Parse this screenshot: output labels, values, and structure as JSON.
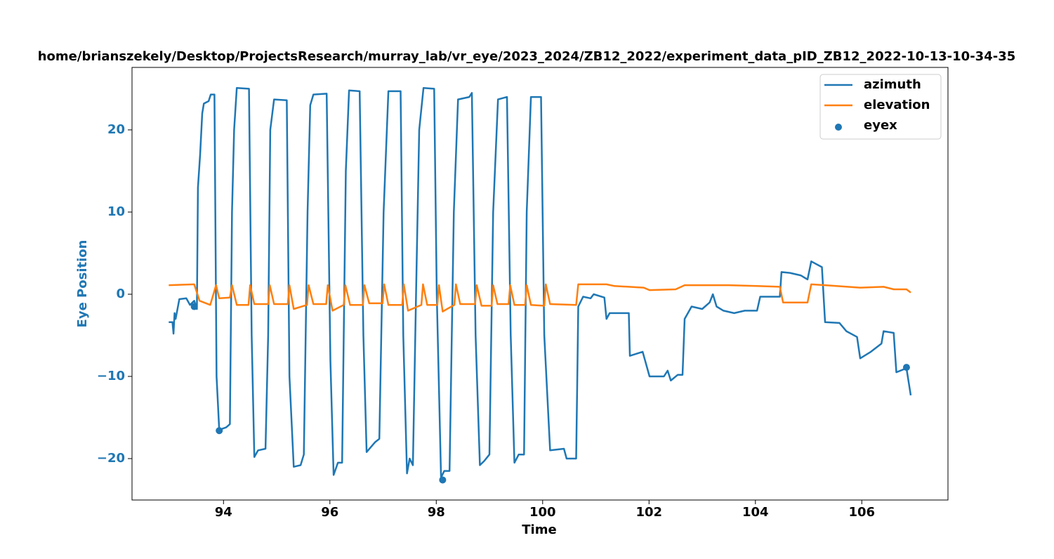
{
  "chart_data": {
    "type": "line",
    "title": "home/brianszekely/Desktop/ProjectsResearch/murray_lab/vr_eye/2023_2024/ZB12_2022/experiment_data_pID_ZB12_2022-10-13-10-34-35",
    "xlabel": "Time",
    "ylabel": "Eye Position",
    "ylabel_color": "#1f77b4",
    "xlim": [
      92.28,
      107.62
    ],
    "ylim": [
      -25.04,
      27.6
    ],
    "xticks": [
      94,
      96,
      98,
      100,
      102,
      104,
      106
    ],
    "yticks": [
      {
        "value": -20,
        "label": "−20"
      },
      {
        "value": -10,
        "label": "−10"
      },
      0,
      10,
      20
    ],
    "legend": "upper right",
    "series": [
      {
        "name": "azimuth",
        "type": "line",
        "color": "#1f77b4",
        "x": [
          92.97,
          93.04,
          93.06,
          93.08,
          93.1,
          93.17,
          93.3,
          93.37,
          93.45,
          93.5,
          93.52,
          93.56,
          93.6,
          93.63,
          93.72,
          93.76,
          93.83,
          93.87,
          93.92,
          94.05,
          94.12,
          94.16,
          94.2,
          94.25,
          94.48,
          94.53,
          94.58,
          94.65,
          94.79,
          94.84,
          94.88,
          94.95,
          95.19,
          95.24,
          95.32,
          95.45,
          95.51,
          95.58,
          95.63,
          95.69,
          95.94,
          96.01,
          96.07,
          96.15,
          96.23,
          96.3,
          96.36,
          96.56,
          96.63,
          96.69,
          96.85,
          96.93,
          97.01,
          97.1,
          97.33,
          97.38,
          97.45,
          97.5,
          97.56,
          97.62,
          97.68,
          97.76,
          97.96,
          98.01,
          98.09,
          98.15,
          98.25,
          98.33,
          98.41,
          98.62,
          98.67,
          98.74,
          98.82,
          98.9,
          99.0,
          99.07,
          99.16,
          99.33,
          99.4,
          99.47,
          99.55,
          99.65,
          99.7,
          99.78,
          99.97,
          100.03,
          100.14,
          100.4,
          100.45,
          100.63,
          100.65,
          100.67,
          100.76,
          100.9,
          100.96,
          101.16,
          101.2,
          101.26,
          101.62,
          101.64,
          101.88,
          102.01,
          102.28,
          102.35,
          102.41,
          102.54,
          102.63,
          102.67,
          102.8,
          103.0,
          103.14,
          103.2,
          103.27,
          103.4,
          103.6,
          103.8,
          104.03,
          104.09,
          104.46,
          104.49,
          104.65,
          104.85,
          104.98,
          105.05,
          105.25,
          105.31,
          105.58,
          105.71,
          105.91,
          105.97,
          106.17,
          106.37,
          106.41,
          106.6,
          106.65,
          106.84,
          106.92
        ],
        "values": [
          -3.4,
          -3.4,
          -4.8,
          -2.3,
          -3,
          -0.6,
          -0.5,
          -1.3,
          -0.8,
          -1.8,
          13,
          17,
          22,
          23.2,
          23.5,
          24.3,
          24.3,
          -10,
          -16.5,
          -16.2,
          -15.8,
          10,
          20,
          25.1,
          25,
          -5,
          -19.8,
          -19,
          -18.8,
          -5,
          20,
          23.7,
          23.6,
          -10,
          -21,
          -20.8,
          -19.5,
          10,
          23,
          24.3,
          24.4,
          -8,
          -22,
          -20.5,
          -20.5,
          15,
          24.8,
          24.7,
          -5,
          -19.2,
          -18,
          -17.6,
          10,
          24.7,
          24.7,
          -5,
          -21.8,
          -20,
          -20.8,
          0,
          20,
          25.1,
          25,
          0,
          -22.3,
          -21.5,
          -21.5,
          10,
          23.7,
          24,
          24.5,
          -5,
          -20.8,
          -20.3,
          -19.5,
          10,
          23.7,
          24,
          -5,
          -20.5,
          -19.5,
          -19.5,
          10,
          24,
          24,
          -5,
          -19,
          -18.8,
          -20,
          -20,
          -11,
          -1.5,
          -0.3,
          -0.5,
          0,
          -0.4,
          -3,
          -2.3,
          -2.3,
          -7.5,
          -7,
          -10,
          -10,
          -9.3,
          -10.5,
          -9.8,
          -9.8,
          -3,
          -1.5,
          -1.8,
          -1,
          0,
          -1.5,
          -2,
          -2.3,
          -2,
          -2,
          -0.3,
          -0.3,
          2.7,
          2.6,
          2.3,
          1.8,
          4,
          3.3,
          -3.4,
          -3.5,
          -4.5,
          -5.2,
          -7.8,
          -7,
          -6,
          -4.5,
          -4.7,
          -9.5,
          -9,
          -12.3
        ]
      },
      {
        "name": "elevation",
        "type": "line",
        "color": "#ff7f0e",
        "x": [
          92.97,
          93.45,
          93.55,
          93.75,
          93.86,
          93.92,
          94.12,
          94.16,
          94.25,
          94.47,
          94.5,
          94.58,
          94.84,
          94.87,
          94.95,
          95.21,
          95.24,
          95.32,
          95.57,
          95.6,
          95.69,
          95.93,
          95.96,
          96.05,
          96.26,
          96.29,
          96.38,
          96.62,
          96.65,
          96.74,
          96.99,
          97.02,
          97.1,
          97.36,
          97.39,
          97.47,
          97.72,
          97.75,
          97.83,
          98.02,
          98.05,
          98.12,
          98.34,
          98.37,
          98.45,
          98.73,
          98.76,
          98.85,
          99.04,
          99.07,
          99.15,
          99.36,
          99.39,
          99.47,
          99.67,
          99.7,
          99.78,
          100.03,
          100.06,
          100.14,
          100.63,
          100.67,
          101.2,
          101.35,
          101.62,
          101.9,
          102.01,
          102.5,
          102.67,
          103.5,
          104.03,
          104.46,
          104.52,
          104.98,
          105.05,
          105.31,
          105.97,
          106.41,
          106.6,
          106.84,
          106.92
        ],
        "values": [
          1.1,
          1.2,
          -0.8,
          -1.3,
          1.1,
          -0.5,
          -0.4,
          1.1,
          -1.3,
          -1.3,
          1.1,
          -1.2,
          -1.2,
          1.1,
          -1.2,
          -1.2,
          1.1,
          -1.8,
          -1.3,
          1.1,
          -1.2,
          -1.2,
          1.1,
          -2.0,
          -1.3,
          1.1,
          -1.3,
          -1.3,
          1.1,
          -1.1,
          -1.1,
          1.2,
          -1.3,
          -1.3,
          1.2,
          -2.0,
          -1.3,
          1.2,
          -1.3,
          -1.3,
          1.1,
          -2.1,
          -1.3,
          1.2,
          -1.2,
          -1.2,
          1.1,
          -1.4,
          -1.4,
          1.1,
          -1.2,
          -1.2,
          1.1,
          -1.3,
          -1.3,
          1.1,
          -1.3,
          -1.4,
          1.2,
          -1.2,
          -1.3,
          1.2,
          1.2,
          1.0,
          0.9,
          0.8,
          0.5,
          0.6,
          1.1,
          1.1,
          1.0,
          0.9,
          -1.0,
          -1.0,
          1.2,
          1.1,
          0.8,
          0.9,
          0.6,
          0.6,
          0.2
        ]
      },
      {
        "name": "eyex",
        "type": "scatter",
        "color": "#1f77b4",
        "x": [
          93.45,
          93.92,
          98.12,
          106.84
        ],
        "values": [
          -1.5,
          -16.6,
          -22.6,
          -8.9
        ]
      }
    ]
  }
}
